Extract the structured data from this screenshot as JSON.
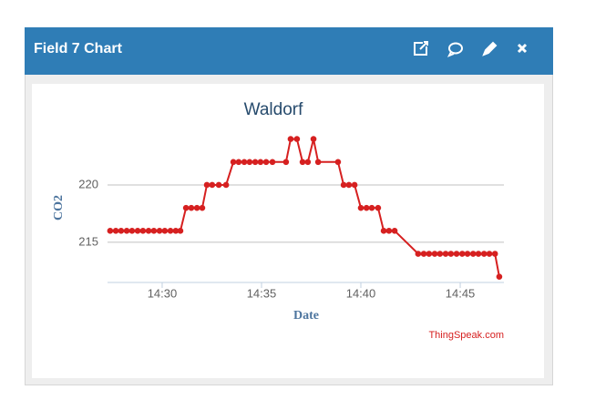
{
  "header": {
    "title": "Field 7 Chart"
  },
  "chart_data": {
    "type": "line",
    "title": "Waldorf",
    "x_label": "Date",
    "y_label": "CO2",
    "credit": "ThingSpeak.com",
    "color": "#d62020",
    "grid": true,
    "x": [
      "14:27:23",
      "14:27:40",
      "14:27:56",
      "14:28:13",
      "14:28:29",
      "14:28:46",
      "14:29:02",
      "14:29:19",
      "14:29:35",
      "14:29:52",
      "14:30:08",
      "14:30:25",
      "14:30:41",
      "14:30:55",
      "14:31:12",
      "14:31:28",
      "14:31:45",
      "14:32:01",
      "14:32:15",
      "14:32:31",
      "14:32:51",
      "14:33:13",
      "14:33:35",
      "14:33:51",
      "14:34:08",
      "14:34:24",
      "14:34:41",
      "14:34:57",
      "14:35:14",
      "14:35:33",
      "14:36:14",
      "14:36:28",
      "14:36:47",
      "14:37:04",
      "14:37:20",
      "14:37:37",
      "14:37:51",
      "14:38:51",
      "14:39:08",
      "14:39:24",
      "14:39:41",
      "14:40:00",
      "14:40:17",
      "14:40:33",
      "14:40:52",
      "14:41:09",
      "14:41:25",
      "14:41:42",
      "14:42:53",
      "14:43:10",
      "14:43:26",
      "14:43:43",
      "14:43:59",
      "14:44:16",
      "14:44:32",
      "14:44:49",
      "14:45:06",
      "14:45:22",
      "14:45:39",
      "14:45:55",
      "14:46:12",
      "14:46:28",
      "14:46:45",
      "14:46:58"
    ],
    "values": [
      216,
      216,
      216,
      216,
      216,
      216,
      216,
      216,
      216,
      216,
      216,
      216,
      216,
      216,
      218,
      218,
      218,
      218,
      220,
      220,
      220,
      220,
      222,
      222,
      222,
      222,
      222,
      222,
      222,
      222,
      222,
      224,
      224,
      222,
      222,
      224,
      222,
      222,
      220,
      220,
      220,
      218,
      218,
      218,
      218,
      216,
      216,
      216,
      214,
      214,
      214,
      214,
      214,
      214,
      214,
      214,
      214,
      214,
      214,
      214,
      214,
      214,
      214,
      212
    ],
    "xlim": [
      "14:27:15",
      "14:47:12"
    ],
    "xticks": [
      "14:30",
      "14:35",
      "14:40",
      "14:45"
    ],
    "ylim": [
      211.5,
      225
    ],
    "yticks": [
      215,
      220
    ]
  }
}
